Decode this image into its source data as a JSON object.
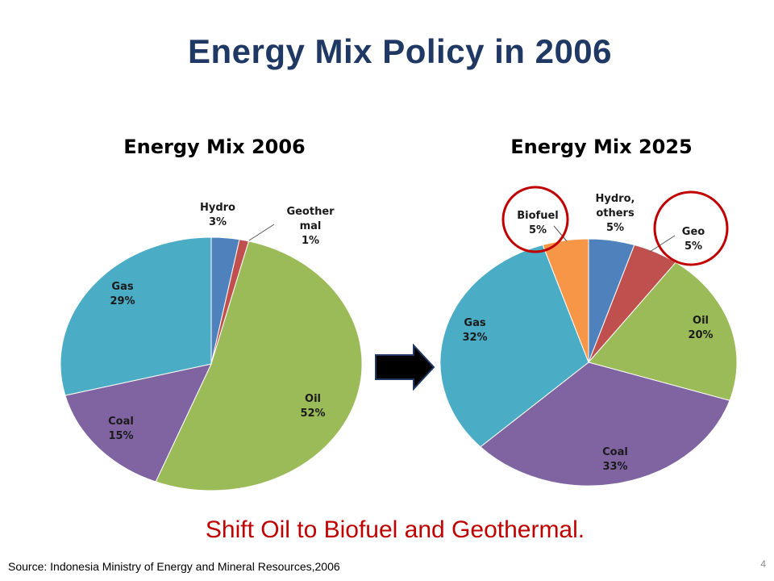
{
  "slide": {
    "title": "Energy Mix Policy in 2006",
    "takeaway": "Shift Oil to Biofuel and Geothermal.",
    "source": "Source: Indonesia Ministry of Energy and Mineral Resources,2006",
    "slide_number": "4",
    "arrow_icon": "right-arrow-icon",
    "highlight_color": "#c00000"
  },
  "chart_data": [
    {
      "type": "pie",
      "title": "Energy Mix 2006",
      "slices": [
        {
          "label": "Hydro",
          "label_lines": [
            "Hydro",
            "3%"
          ],
          "value": 3,
          "color": "#4f81bd"
        },
        {
          "label": "Geothermal",
          "label_lines": [
            "Geother",
            "mal",
            "1%"
          ],
          "value": 1,
          "color": "#c0504d"
        },
        {
          "label": "Oil",
          "label_lines": [
            "Oil",
            "52%"
          ],
          "value": 52,
          "color": "#9bbb59"
        },
        {
          "label": "Coal",
          "label_lines": [
            "Coal",
            "15%"
          ],
          "value": 15,
          "color": "#8064a2"
        },
        {
          "label": "Gas",
          "label_lines": [
            "Gas",
            "29%"
          ],
          "value": 29,
          "color": "#4bacc6"
        }
      ]
    },
    {
      "type": "pie",
      "title": "Energy Mix 2025",
      "slices": [
        {
          "label": "Hydro, others",
          "label_lines": [
            "Hydro,",
            "others",
            "5%"
          ],
          "value": 5,
          "color": "#4f81bd"
        },
        {
          "label": "Geo",
          "label_lines": [
            "Geo",
            "5%"
          ],
          "value": 5,
          "color": "#c0504d",
          "highlighted": true
        },
        {
          "label": "Oil",
          "label_lines": [
            "Oil",
            "20%"
          ],
          "value": 20,
          "color": "#9bbb59"
        },
        {
          "label": "Coal",
          "label_lines": [
            "Coal",
            "33%"
          ],
          "value": 33,
          "color": "#8064a2"
        },
        {
          "label": "Gas",
          "label_lines": [
            "Gas",
            "32%"
          ],
          "value": 32,
          "color": "#4bacc6"
        },
        {
          "label": "Biofuel",
          "label_lines": [
            "Biofuel",
            "5%"
          ],
          "value": 5,
          "color": "#f79646",
          "highlighted": true
        }
      ]
    }
  ]
}
